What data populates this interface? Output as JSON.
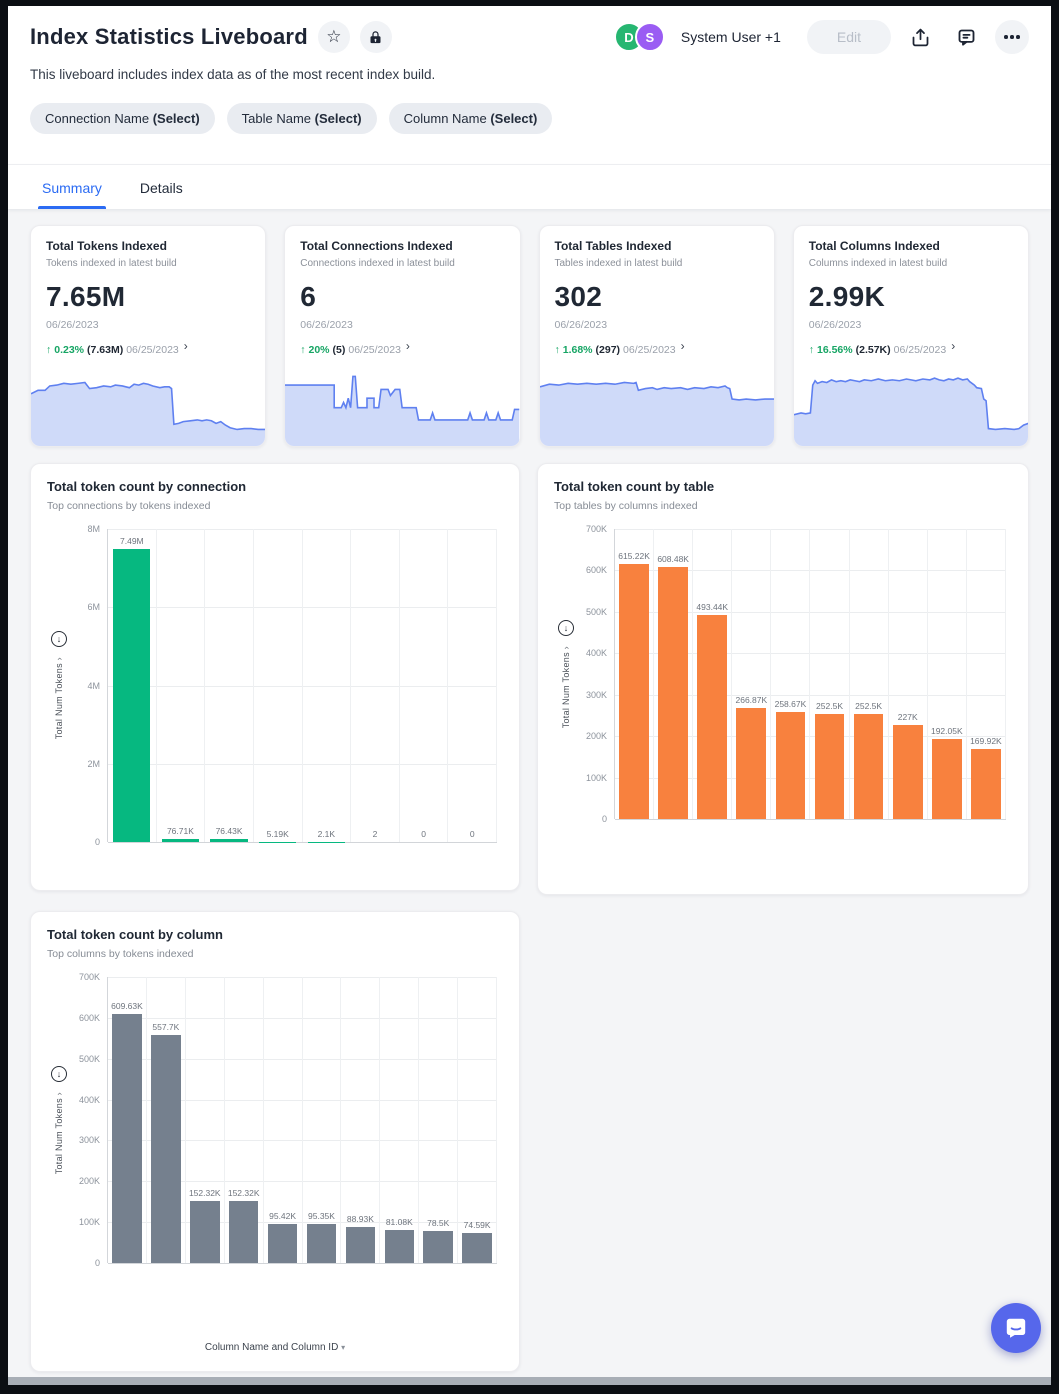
{
  "header": {
    "title": "Index Statistics Liveboard",
    "description": "This liveboard includes index data as of the most recent index build.",
    "users_label": "System User +1",
    "edit_label": "Edit",
    "avatars": [
      {
        "initial": "D",
        "color": "#26b671"
      },
      {
        "initial": "S",
        "color": "#9a5cf3"
      }
    ]
  },
  "filters": [
    {
      "name": "Connection Name",
      "select": "(Select)"
    },
    {
      "name": "Table Name",
      "select": "(Select)"
    },
    {
      "name": "Column Name",
      "select": "(Select)"
    }
  ],
  "tabs": [
    {
      "label": "Summary"
    },
    {
      "label": "Details"
    }
  ],
  "colors": {
    "accent_blue": "#2b6bf3",
    "trend_green": "#16a564",
    "spark_line": "#5f80f0",
    "spark_fill": "#cfdaf9",
    "green_bar": "#06b880",
    "orange_bar": "#f8813e",
    "gray_bar": "#75808e",
    "fab_purple": "#5667eb"
  },
  "kpis": [
    {
      "title": "Total Tokens Indexed",
      "subtitle": "Tokens indexed in latest build",
      "value": "7.65M",
      "date": "06/26/2023",
      "trend_arrow": "↑",
      "trend_pct": "0.23%",
      "trend_value": "(7.63M)",
      "trend_date": "06/25/2023",
      "sparkline": [
        [
          0,
          40
        ],
        [
          3,
          36
        ],
        [
          6,
          36
        ],
        [
          8,
          31
        ],
        [
          11,
          30
        ],
        [
          14,
          28
        ],
        [
          17,
          29
        ],
        [
          20,
          28
        ],
        [
          23,
          27
        ],
        [
          25,
          34
        ],
        [
          28,
          33
        ],
        [
          31,
          31
        ],
        [
          34,
          32
        ],
        [
          36,
          30
        ],
        [
          39,
          31
        ],
        [
          42,
          33
        ],
        [
          44,
          29
        ],
        [
          46,
          30
        ],
        [
          48,
          28
        ],
        [
          50,
          29
        ],
        [
          52,
          31
        ],
        [
          55,
          33
        ],
        [
          57,
          32
        ],
        [
          59,
          32
        ],
        [
          60,
          34
        ],
        [
          61,
          75
        ],
        [
          63,
          74
        ],
        [
          65,
          72
        ],
        [
          68,
          71
        ],
        [
          71,
          70
        ],
        [
          73,
          71
        ],
        [
          75,
          70
        ],
        [
          77,
          71
        ],
        [
          79,
          74
        ],
        [
          81,
          72
        ],
        [
          83,
          76
        ],
        [
          85,
          79
        ],
        [
          88,
          81
        ],
        [
          91,
          80
        ],
        [
          94,
          80
        ],
        [
          97,
          81
        ],
        [
          100,
          81
        ]
      ]
    },
    {
      "title": "Total Connections Indexed",
      "subtitle": "Connections indexed in latest build",
      "value": "6",
      "date": "06/26/2023",
      "trend_arrow": "↑",
      "trend_pct": "20%",
      "trend_value": "(5)",
      "trend_date": "06/25/2023",
      "sparkline": [
        [
          0,
          30
        ],
        [
          21,
          30
        ],
        [
          21,
          56
        ],
        [
          24,
          56
        ],
        [
          25,
          50
        ],
        [
          26,
          56
        ],
        [
          27,
          45
        ],
        [
          28,
          56
        ],
        [
          29,
          20
        ],
        [
          30,
          20
        ],
        [
          31,
          56
        ],
        [
          35,
          56
        ],
        [
          35,
          45
        ],
        [
          38,
          45
        ],
        [
          38,
          56
        ],
        [
          40,
          56
        ],
        [
          41,
          35
        ],
        [
          44,
          35
        ],
        [
          45,
          42
        ],
        [
          47,
          35
        ],
        [
          49,
          35
        ],
        [
          50,
          56
        ],
        [
          56,
          56
        ],
        [
          57,
          70
        ],
        [
          62,
          70
        ],
        [
          63,
          62
        ],
        [
          64,
          70
        ],
        [
          78,
          70
        ],
        [
          79,
          62
        ],
        [
          80,
          70
        ],
        [
          85,
          70
        ],
        [
          86,
          62
        ],
        [
          87,
          70
        ],
        [
          90,
          70
        ],
        [
          91,
          62
        ],
        [
          92,
          70
        ],
        [
          97,
          70
        ],
        [
          98,
          58
        ],
        [
          100,
          58
        ]
      ]
    },
    {
      "title": "Total Tables Indexed",
      "subtitle": "Tables indexed in latest build",
      "value": "302",
      "date": "06/26/2023",
      "trend_arrow": "↑",
      "trend_pct": "1.68%",
      "trend_value": "(297)",
      "trend_date": "06/25/2023",
      "sparkline": [
        [
          0,
          32
        ],
        [
          4,
          29
        ],
        [
          8,
          30
        ],
        [
          12,
          28
        ],
        [
          16,
          29
        ],
        [
          20,
          28
        ],
        [
          24,
          29
        ],
        [
          28,
          28
        ],
        [
          32,
          29
        ],
        [
          36,
          27
        ],
        [
          40,
          28
        ],
        [
          41,
          27
        ],
        [
          42,
          36
        ],
        [
          45,
          34
        ],
        [
          48,
          33
        ],
        [
          50,
          35
        ],
        [
          53,
          33
        ],
        [
          56,
          34
        ],
        [
          60,
          33
        ],
        [
          63,
          35
        ],
        [
          66,
          33
        ],
        [
          70,
          34
        ],
        [
          73,
          32
        ],
        [
          76,
          33
        ],
        [
          79,
          31
        ],
        [
          80,
          33
        ],
        [
          81,
          34
        ],
        [
          82,
          46
        ],
        [
          85,
          47
        ],
        [
          88,
          46
        ],
        [
          92,
          47
        ],
        [
          96,
          46
        ],
        [
          100,
          46
        ]
      ]
    },
    {
      "title": "Total Columns Indexed",
      "subtitle": "Columns indexed in latest build",
      "value": "2.99K",
      "date": "06/26/2023",
      "trend_arrow": "↑",
      "trend_pct": "16.56%",
      "trend_value": "(2.57K)",
      "trend_date": "06/25/2023",
      "sparkline": [
        [
          0,
          64
        ],
        [
          3,
          62
        ],
        [
          5,
          63
        ],
        [
          7,
          62
        ],
        [
          8,
          30
        ],
        [
          9,
          25
        ],
        [
          10,
          28
        ],
        [
          12,
          26
        ],
        [
          14,
          27
        ],
        [
          16,
          24
        ],
        [
          18,
          26
        ],
        [
          20,
          25
        ],
        [
          22,
          26
        ],
        [
          24,
          24
        ],
        [
          26,
          25
        ],
        [
          28,
          26
        ],
        [
          30,
          24
        ],
        [
          33,
          25
        ],
        [
          36,
          23
        ],
        [
          39,
          25
        ],
        [
          42,
          24
        ],
        [
          45,
          25
        ],
        [
          48,
          23
        ],
        [
          50,
          24
        ],
        [
          52,
          25
        ],
        [
          55,
          23
        ],
        [
          58,
          24
        ],
        [
          60,
          22
        ],
        [
          62,
          24
        ],
        [
          64,
          25
        ],
        [
          66,
          23
        ],
        [
          68,
          24
        ],
        [
          70,
          22
        ],
        [
          72,
          24
        ],
        [
          74,
          23
        ],
        [
          75,
          26
        ],
        [
          77,
          30
        ],
        [
          78,
          33
        ],
        [
          80,
          34
        ],
        [
          81,
          46
        ],
        [
          82,
          48
        ],
        [
          83,
          80
        ],
        [
          86,
          81
        ],
        [
          90,
          80
        ],
        [
          94,
          81
        ],
        [
          96,
          80
        ],
        [
          98,
          76
        ],
        [
          100,
          74
        ]
      ]
    }
  ],
  "chart_data": [
    {
      "type": "bar",
      "title": "Total token count by connection",
      "subtitle": "Top connections by tokens indexed",
      "ylabel": "Total Num Tokens",
      "xlabel": "",
      "bar_color": "#06b880",
      "ylim": [
        0,
        8000000
      ],
      "yticks": [
        "8M",
        "6M",
        "4M",
        "2M",
        "0"
      ],
      "values": [
        7490000,
        76710,
        76430,
        5190,
        2100,
        2,
        0,
        0
      ],
      "labels": [
        "7.49M",
        "76.71K",
        "76.43K",
        "5.19K",
        "2.1K",
        "2",
        "0",
        "0"
      ],
      "grid": true,
      "legend": "none"
    },
    {
      "type": "bar",
      "title": "Total token count by table",
      "subtitle": "Top tables by columns indexed",
      "ylabel": "Total Num Tokens",
      "xlabel": "",
      "bar_color": "#f8813e",
      "ylim": [
        0,
        700000
      ],
      "yticks": [
        "700K",
        "600K",
        "500K",
        "400K",
        "300K",
        "200K",
        "100K",
        "0"
      ],
      "values": [
        615220,
        608480,
        493440,
        266870,
        258670,
        252500,
        252500,
        227000,
        192050,
        169920
      ],
      "labels": [
        "615.22K",
        "608.48K",
        "493.44K",
        "266.87K",
        "258.67K",
        "252.5K",
        "252.5K",
        "227K",
        "192.05K",
        "169.92K"
      ],
      "grid": true,
      "legend": "none"
    },
    {
      "type": "bar",
      "title": "Total token count by column",
      "subtitle": "Top columns by tokens indexed",
      "ylabel": "Total Num Tokens",
      "xlabel": "Column Name and Column ID",
      "bar_color": "#75808e",
      "ylim": [
        0,
        700000
      ],
      "yticks": [
        "700K",
        "600K",
        "500K",
        "400K",
        "300K",
        "200K",
        "100K",
        "0"
      ],
      "values": [
        609630,
        557700,
        152320,
        152320,
        95420,
        95350,
        88930,
        81080,
        78500,
        74590
      ],
      "labels": [
        "609.63K",
        "557.7K",
        "152.32K",
        "152.32K",
        "95.42K",
        "95.35K",
        "88.93K",
        "81.08K",
        "78.5K",
        "74.59K"
      ],
      "grid": true,
      "legend": "none"
    }
  ]
}
